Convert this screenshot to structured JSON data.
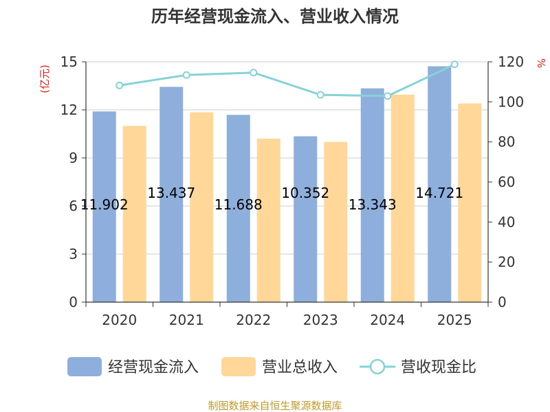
{
  "chart_data": {
    "type": "bar",
    "title": "历年经营现金流入、营业收入情况",
    "categories": [
      "2020",
      "2021",
      "2022",
      "2023",
      "2024",
      "2025"
    ],
    "series": [
      {
        "name": "经营现金流入",
        "type": "bar",
        "axis": "left",
        "color": "#8eaedb",
        "values": [
          11.902,
          13.437,
          11.688,
          10.352,
          13.343,
          14.721
        ],
        "labels": [
          "11.902",
          "13.437",
          "11.688",
          "10.352",
          "13.343",
          "14.721"
        ]
      },
      {
        "name": "营业总收入",
        "type": "bar",
        "axis": "left",
        "color": "#ffd899",
        "values": [
          11.0,
          11.85,
          10.2,
          10.0,
          12.95,
          12.4
        ]
      },
      {
        "name": "营收现金比",
        "type": "line",
        "axis": "right",
        "color": "#85d3d6",
        "values": [
          108.2,
          113.4,
          114.6,
          103.5,
          102.9,
          118.7
        ]
      }
    ],
    "y_left": {
      "unit": "(亿元)",
      "range": [
        0,
        15
      ],
      "ticks": [
        "0",
        "3",
        "6",
        "9",
        "12",
        "15"
      ]
    },
    "y_right": {
      "unit": "%",
      "range": [
        0,
        120
      ],
      "ticks": [
        "0",
        "20",
        "40",
        "60",
        "80",
        "100",
        "120"
      ]
    },
    "grid": true,
    "legend_position": "bottom"
  },
  "footer": "制图数据来自恒生聚源数据库"
}
